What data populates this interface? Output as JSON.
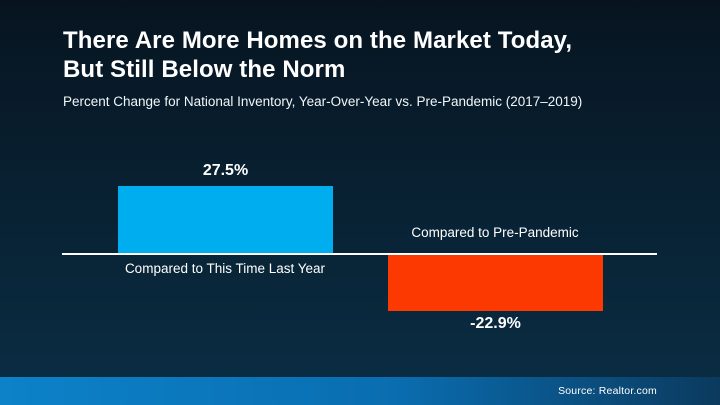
{
  "header": {
    "title_line1": "There Are More Homes on the Market Today,",
    "title_line2": "But Still Below the Norm",
    "subtitle": "Percent Change for National Inventory, Year-Over-Year vs. Pre-Pandemic (2017–2019)"
  },
  "chart_data": {
    "type": "bar",
    "title": "There Are More Homes on the Market Today, But Still Below the Norm",
    "subtitle": "Percent Change for National Inventory, Year-Over-Year vs. Pre-Pandemic (2017–2019)",
    "categories": [
      "Compared to This Time Last Year",
      "Compared to Pre-Pandemic"
    ],
    "values": [
      27.5,
      -22.9
    ],
    "value_labels": [
      "27.5%",
      "-22.9%"
    ],
    "bar_colors": [
      "#00AEEF",
      "#FB3901"
    ],
    "axis_line_color": "#FFFFFF",
    "ylim": [
      -30,
      35
    ],
    "grid": false,
    "legend": false,
    "orientation": "vertical"
  },
  "colors": {
    "background_top": "#071420",
    "background_bottom": "#0A2C42",
    "footer_gradient_left": "#0C82C9",
    "footer_gradient_mid": "#0A6DB0",
    "footer_gradient_right": "#0B3A5E",
    "text": "#FFFFFF"
  },
  "footer": {
    "source": "Source: Realtor.com"
  }
}
